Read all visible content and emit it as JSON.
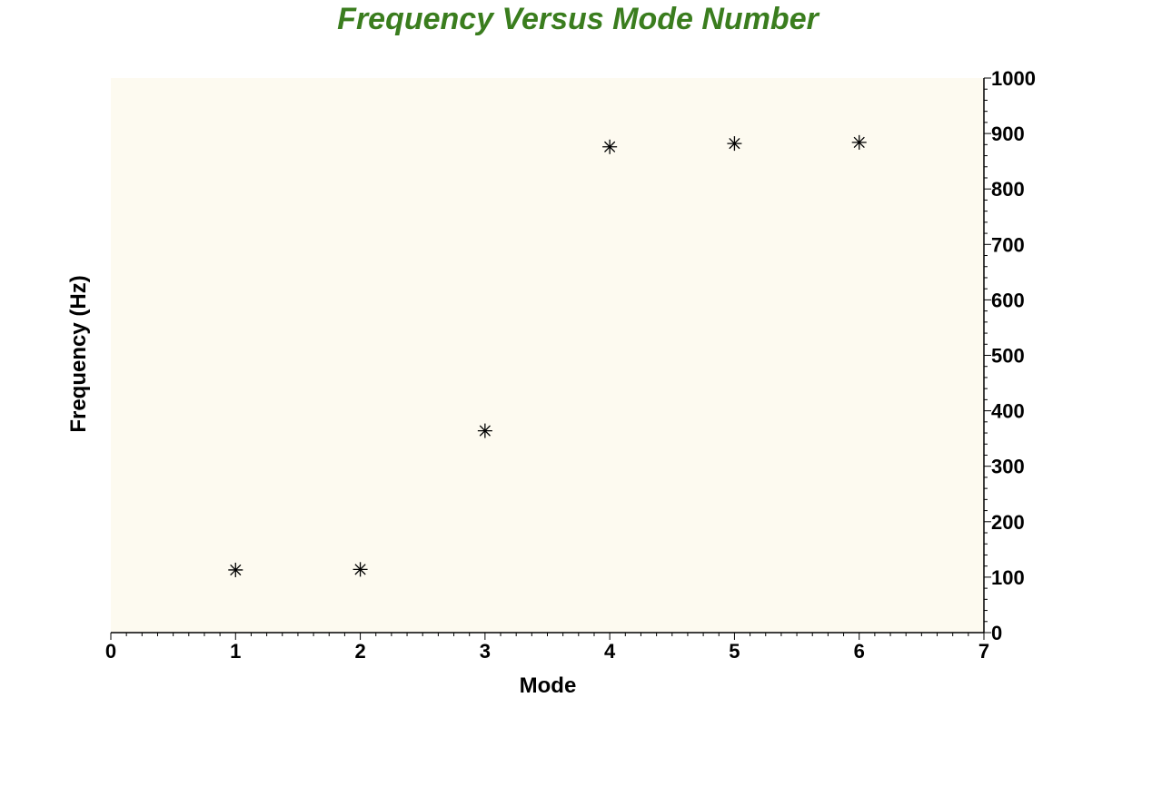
{
  "chart_data": {
    "type": "scatter",
    "title": "Frequency Versus Mode Number",
    "xlabel": "Mode",
    "ylabel": "Frequency (Hz)",
    "xlim": [
      0,
      7
    ],
    "ylim": [
      0,
      1000
    ],
    "x_ticks": [
      0,
      1,
      2,
      3,
      4,
      5,
      6,
      7
    ],
    "y_ticks": [
      0,
      100,
      200,
      300,
      400,
      500,
      600,
      700,
      800,
      900,
      1000
    ],
    "y_axis_side": "right",
    "grid": false,
    "marker": "asterisk",
    "series": [
      {
        "x": [
          1,
          2,
          3,
          4,
          5,
          6
        ],
        "y": [
          113,
          114,
          364,
          876,
          882,
          884
        ]
      }
    ]
  },
  "colors": {
    "title": "#3a7d1e",
    "plot_background": "#fdfaf0",
    "axis": "#000000",
    "marker": "#000000"
  }
}
